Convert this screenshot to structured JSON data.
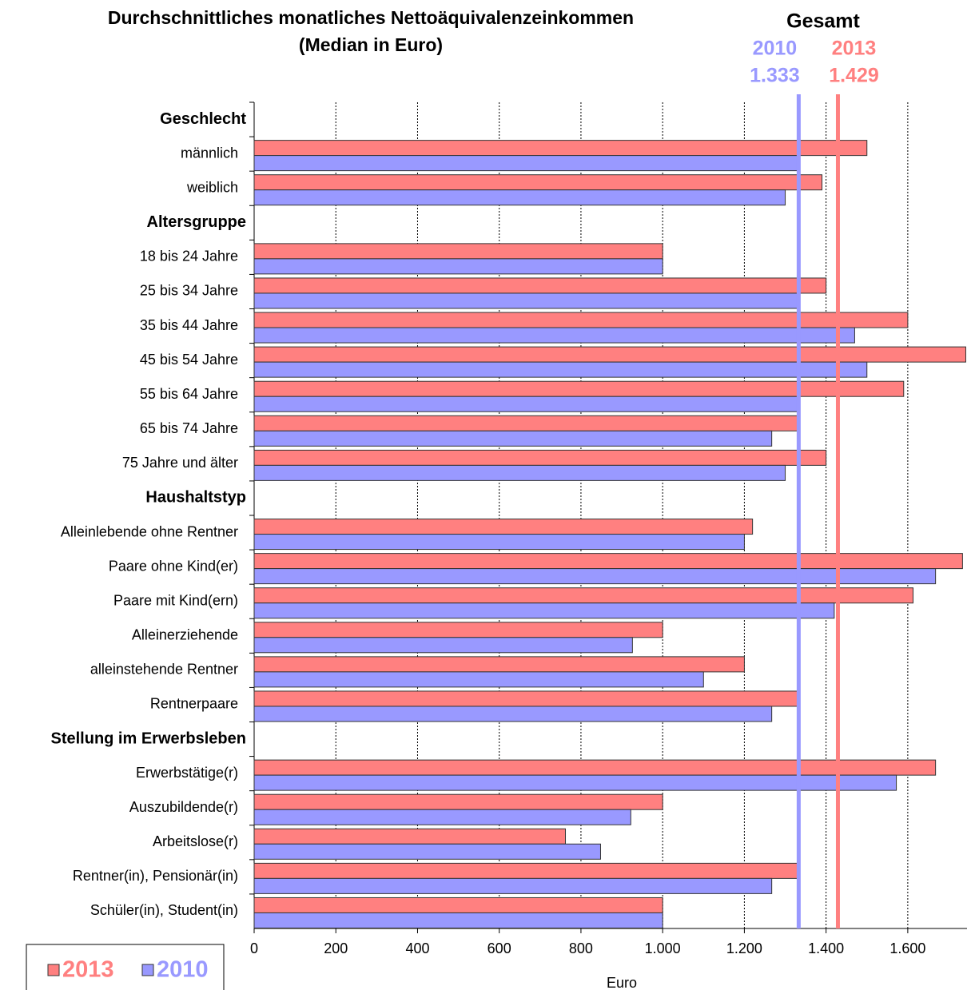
{
  "chart_data": {
    "type": "hbar",
    "title": [
      "Durchschnittliches monatliches Nettoäquivalenzeinkommen",
      "(Median in Euro)"
    ],
    "x_label": "Euro",
    "reference_title": "Gesamt",
    "reference_lines": [
      {
        "name": "2010",
        "value": 1333,
        "label": "1.333",
        "color": "#9999ff"
      },
      {
        "name": "2013",
        "value": 1429,
        "label": "1.429",
        "color": "#ff8080"
      }
    ],
    "categories": [
      "Geschlecht",
      "männlich",
      "weiblich",
      "Altersgruppe",
      "18 bis 24 Jahre",
      "25 bis 34 Jahre",
      "35 bis 44 Jahre",
      "45 bis 54 Jahre",
      "55 bis 64 Jahre",
      "65 bis 74 Jahre",
      "75 Jahre und älter",
      "Haushaltstyp",
      "Alleinlebende ohne Rentner",
      "Paare ohne Kind(er)",
      "Paare mit Kind(ern)",
      "Alleinerziehende",
      "alleinstehende Rentner",
      "Rentnerpaare",
      "Stellung im Erwerbsleben",
      "Erwerbstätige(r)",
      "Auszubildende(r)",
      "Arbeitslose(r)",
      "Rentner(in), Pensionär(in)",
      "Schüler(in), Student(in)"
    ],
    "series": [
      {
        "name": "2013",
        "color": "#ff8080",
        "values": [
          null,
          1500,
          1390,
          null,
          1000,
          1400,
          1600,
          1742,
          1590,
          1333,
          1400,
          null,
          1220,
          1734,
          1613,
          1000,
          1200,
          1333,
          null,
          1668,
          1000,
          762,
          1333,
          1000
        ]
      },
      {
        "name": "2010",
        "color": "#9999ff",
        "values": [
          null,
          1333,
          1300,
          null,
          1000,
          1333,
          1470,
          1500,
          1333,
          1267,
          1300,
          null,
          1200,
          1668,
          1420,
          926,
          1100,
          1267,
          null,
          1572,
          922,
          848,
          1267,
          1000
        ]
      }
    ],
    "xlim": [
      0,
      1745
    ],
    "xticks": [
      0,
      200,
      400,
      600,
      800,
      {
        "value": 1000,
        "label": "1.000"
      },
      {
        "value": 1200,
        "label": "1.200"
      },
      {
        "value": 1400,
        "label": "1.400"
      },
      {
        "value": 1600,
        "label": "1.600"
      }
    ],
    "grid": true,
    "legend": "bottom-left"
  }
}
